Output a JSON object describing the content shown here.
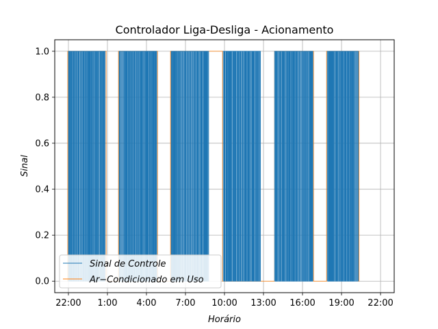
{
  "chart_data": {
    "type": "line",
    "title": "Controlador Liga-Desliga - Acionamento",
    "xlabel": "Horário",
    "ylabel": "Sinal",
    "x_ticks": [
      "22:00",
      "1:00",
      "4:00",
      "7:00",
      "10:00",
      "13:00",
      "16:00",
      "19:00",
      "22:00"
    ],
    "x_tick_hours": [
      0,
      3,
      6,
      9,
      12,
      15,
      18,
      21,
      24
    ],
    "xlim_hours": [
      -1.05,
      25.05
    ],
    "y_ticks": [
      "0.0",
      "0.2",
      "0.4",
      "0.6",
      "0.8",
      "1.0"
    ],
    "y_tick_values": [
      0,
      0.2,
      0.4,
      0.6,
      0.8,
      1.0
    ],
    "ylim": [
      -0.05,
      1.05
    ],
    "grid": true,
    "legend_position": "lower left",
    "series": [
      {
        "name": "Sinal de Controle",
        "color": "#1f77b4",
        "pattern": "rapid on/off switching between 0 and 1 during AC-in-use intervals",
        "active_blocks_hours": [
          [
            0.0,
            2.85
          ],
          [
            3.9,
            6.8
          ],
          [
            7.9,
            10.8
          ],
          [
            11.9,
            14.8
          ],
          [
            15.85,
            18.8
          ],
          [
            19.9,
            22.3
          ]
        ]
      },
      {
        "name": "Ar−Condicionado em Uso",
        "color": "#ff7f0e",
        "on_intervals_hours": [
          [
            -0.05,
            2.9
          ],
          [
            3.85,
            6.85
          ],
          [
            7.85,
            11.85
          ],
          [
            15.85,
            18.85
          ],
          [
            19.85,
            22.35
          ]
        ]
      }
    ]
  }
}
